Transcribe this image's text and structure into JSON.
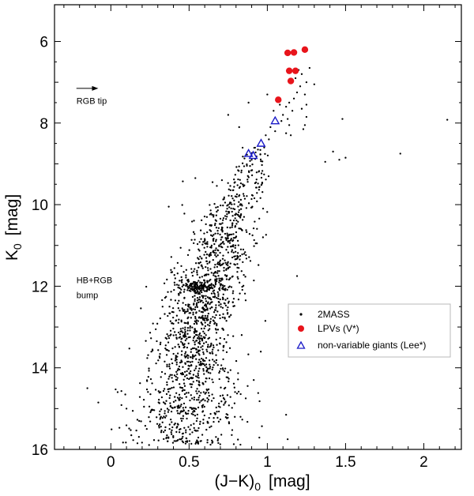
{
  "chart_data": {
    "type": "scatter",
    "xlabel": "(J−K)₀ [mag]",
    "xlabel_main": "(J−K)",
    "xlabel_sub": "0",
    "xlabel_unit": "[mag]",
    "ylabel": "K₀ [mag]",
    "ylabel_main": "K",
    "ylabel_sub": "0",
    "ylabel_unit": "[mag]",
    "xlim": [
      -0.36,
      2.24
    ],
    "ylim": [
      16,
      5.1
    ],
    "y_inverted": true,
    "xticks": [
      {
        "v": 0,
        "label": "0"
      },
      {
        "v": 0.5,
        "label": "0.5"
      },
      {
        "v": 1,
        "label": "1"
      },
      {
        "v": 1.5,
        "label": "1.5"
      },
      {
        "v": 2,
        "label": "2"
      }
    ],
    "yticks": [
      {
        "v": 6,
        "label": "6"
      },
      {
        "v": 8,
        "label": "8"
      },
      {
        "v": 10,
        "label": "10"
      },
      {
        "v": 12,
        "label": "12"
      },
      {
        "v": 14,
        "label": "14"
      },
      {
        "v": 16,
        "label": "16"
      }
    ],
    "legend_position": "lower-right",
    "annotations": [
      {
        "text": "RGB tip",
        "x": -0.22,
        "y": 7.45,
        "arrow_to": [
          -0.08,
          7.15
        ],
        "arrow_from": [
          -0.22,
          7.15
        ]
      },
      {
        "lines": [
          "HB+RGB",
          "bump"
        ],
        "x": -0.22,
        "y": 11.85
      }
    ],
    "colors": {
      "2MASS": "#000000",
      "LPVs": "#e8141b",
      "giants": "#1b1bc8"
    },
    "series": [
      {
        "name": "LPVs (V*)",
        "key": "LPVs",
        "marker": "filled-circle",
        "points": [
          [
            1.13,
            6.28
          ],
          [
            1.17,
            6.27
          ],
          [
            1.24,
            6.2
          ],
          [
            1.14,
            6.72
          ],
          [
            1.18,
            6.72
          ],
          [
            1.15,
            6.97
          ],
          [
            1.07,
            7.43
          ]
        ]
      },
      {
        "name": "non-variable giants (Lee*)",
        "key": "giants",
        "marker": "open-triangle",
        "points": [
          [
            1.05,
            7.95
          ],
          [
            0.96,
            8.5
          ],
          [
            0.88,
            8.75
          ],
          [
            0.91,
            8.8
          ]
        ]
      },
      {
        "name": "2MASS",
        "key": "2MASS",
        "marker": "dot",
        "points": [
          [
            1.2,
            6.7
          ],
          [
            1.22,
            6.8
          ],
          [
            1.18,
            6.9
          ],
          [
            1.25,
            7.0
          ],
          [
            1.27,
            6.65
          ],
          [
            1.3,
            7.05
          ],
          [
            1.21,
            7.1
          ],
          [
            1.19,
            7.25
          ],
          [
            1.24,
            7.3
          ],
          [
            1.17,
            7.4
          ],
          [
            1.14,
            7.5
          ],
          [
            1.12,
            7.6
          ],
          [
            1.16,
            7.7
          ],
          [
            1.1,
            7.8
          ],
          [
            1.13,
            7.9
          ],
          [
            1.08,
            7.55
          ],
          [
            1.04,
            7.7
          ],
          [
            1.09,
            7.95
          ],
          [
            1.02,
            8.1
          ],
          [
            1.05,
            8.2
          ],
          [
            0.99,
            8.3
          ],
          [
            1.01,
            8.4
          ],
          [
            0.98,
            8.6
          ],
          [
            0.94,
            8.65
          ],
          [
            0.9,
            8.9
          ],
          [
            1.12,
            8.25
          ],
          [
            1.15,
            8.3
          ],
          [
            1.14,
            8.05
          ],
          [
            0.88,
            7.5
          ],
          [
            0.75,
            7.8
          ],
          [
            1.0,
            7.3
          ],
          [
            1.25,
            7.55
          ],
          [
            1.22,
            7.65
          ],
          [
            1.25,
            7.85
          ],
          [
            1.24,
            8.05
          ],
          [
            1.23,
            8.15
          ],
          [
            1.48,
            7.9
          ],
          [
            2.15,
            7.92
          ],
          [
            1.5,
            8.85
          ],
          [
            1.46,
            8.9
          ],
          [
            1.42,
            8.7
          ],
          [
            1.85,
            8.75
          ],
          [
            1.37,
            8.95
          ],
          [
            0.82,
            8.1
          ],
          [
            0.71,
            9.4
          ],
          [
            0.65,
            9.45
          ],
          [
            0.54,
            9.35
          ],
          [
            0.46,
            9.43
          ],
          [
            0.37,
            10.05
          ],
          [
            0.47,
            10.22
          ],
          [
            1.19,
            11.75
          ],
          [
            1.13,
            15.75
          ],
          [
            1.12,
            15.15
          ],
          [
            0.17,
            15.85
          ],
          [
            0.44,
            15.75
          ],
          [
            -0.08,
            14.85
          ],
          [
            -0.15,
            14.5
          ],
          [
            0.1,
            15.0
          ]
        ],
        "cluster_density": [
          {
            "y_from": 8.6,
            "y_to": 9.3,
            "x_center": 0.9,
            "x_spread": 0.06,
            "count": 45
          },
          {
            "y_from": 9.3,
            "y_to": 10.0,
            "x_center": 0.82,
            "x_spread": 0.07,
            "count": 75
          },
          {
            "y_from": 10.0,
            "y_to": 10.8,
            "x_center": 0.73,
            "x_spread": 0.09,
            "count": 140
          },
          {
            "y_from": 10.8,
            "y_to": 11.6,
            "x_center": 0.66,
            "x_spread": 0.1,
            "count": 190
          },
          {
            "y_from": 11.6,
            "y_to": 12.3,
            "x_center": 0.58,
            "x_spread": 0.13,
            "count": 320
          },
          {
            "y_from": 12.3,
            "y_to": 13.2,
            "x_center": 0.55,
            "x_spread": 0.12,
            "count": 270
          },
          {
            "y_from": 13.2,
            "y_to": 14.2,
            "x_center": 0.5,
            "x_spread": 0.13,
            "count": 290
          },
          {
            "y_from": 14.2,
            "y_to": 15.9,
            "x_center": 0.45,
            "x_spread": 0.17,
            "count": 420
          }
        ]
      }
    ],
    "legend": [
      {
        "key": "2MASS",
        "label": "2MASS",
        "marker": "dot"
      },
      {
        "key": "LPVs",
        "label": "LPVs (V*)",
        "marker": "filled-circle"
      },
      {
        "key": "giants",
        "label": "non-variable giants (Lee*)",
        "marker": "open-triangle"
      }
    ]
  }
}
